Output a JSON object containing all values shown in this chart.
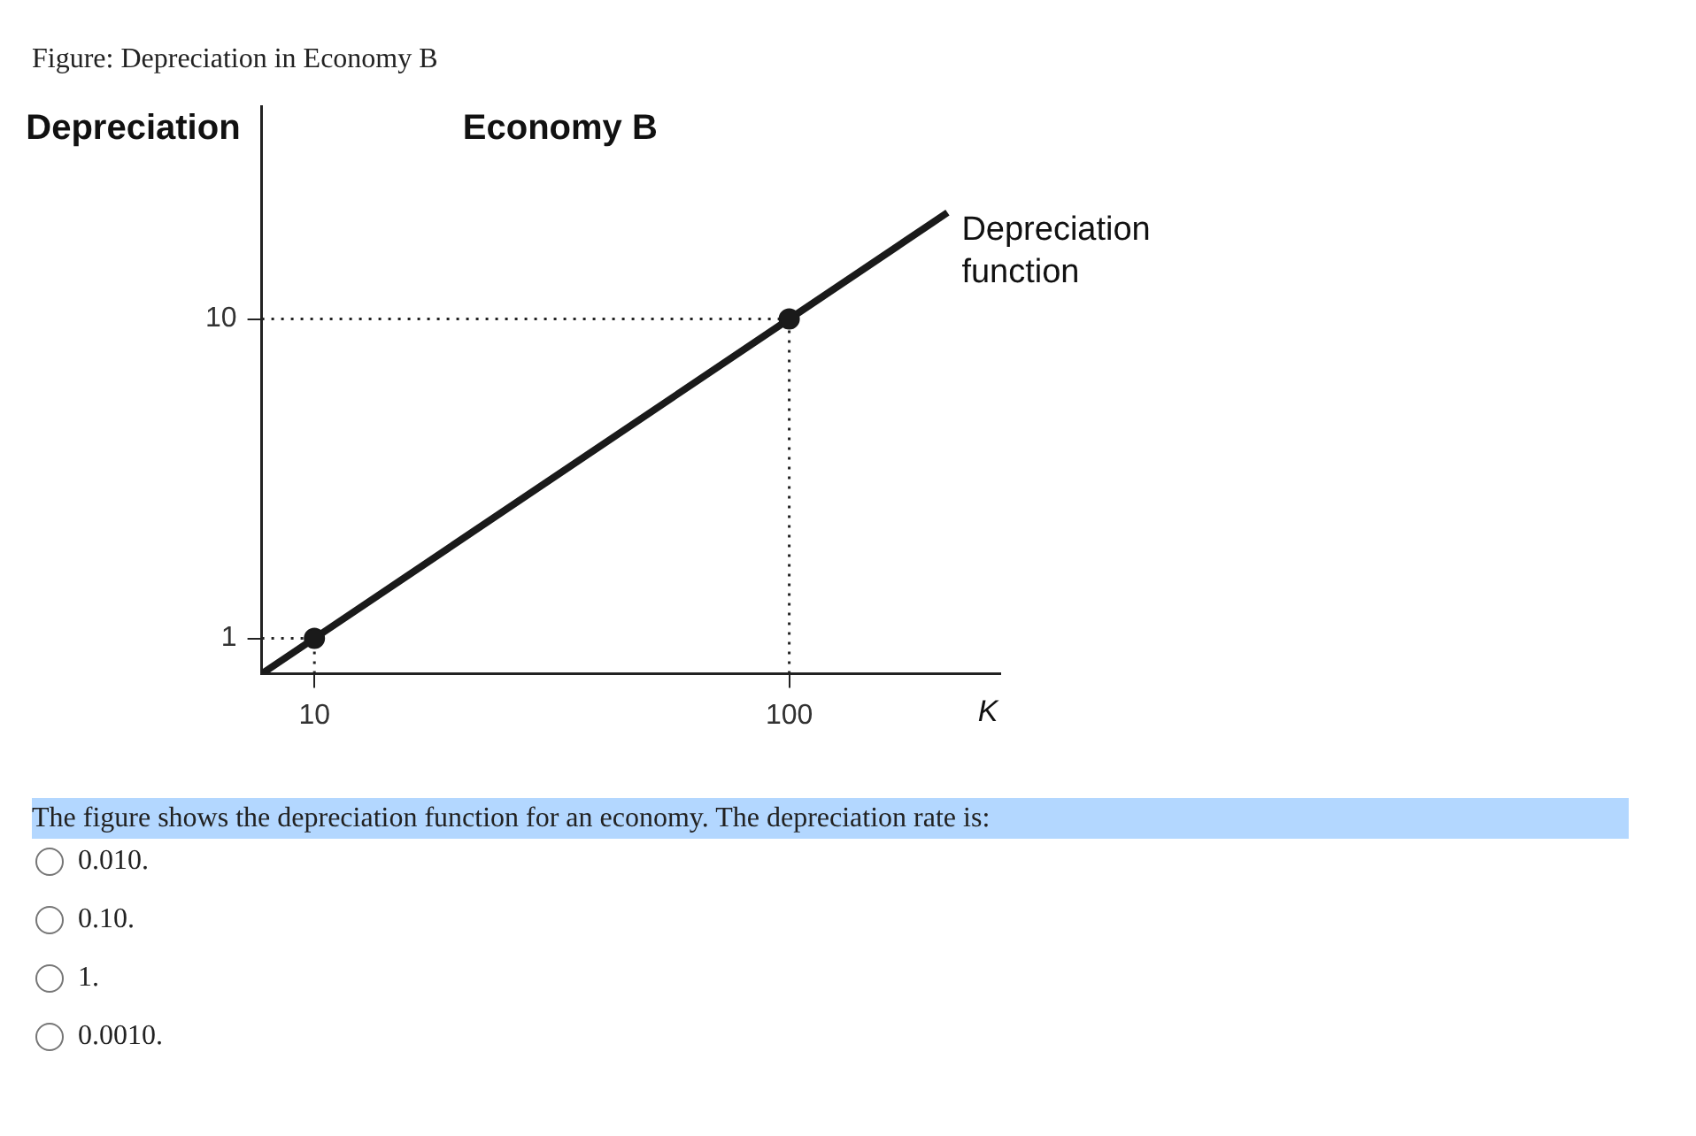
{
  "chart_data": {
    "type": "line",
    "title": "Economy B",
    "ylabel": "Depreciation",
    "xlabel": "K",
    "series": [
      {
        "type": "line",
        "color": "#222222",
        "x": [
          0,
          10
        ],
        "values": [
          1,
          1
        ],
        "marker": "none",
        "line_style": "dotted"
      },
      {
        "type": "line",
        "color": "#222222",
        "x": [
          10,
          10
        ],
        "values": [
          0,
          1
        ],
        "marker": "none",
        "line_style": "dotted"
      },
      {
        "type": "line",
        "color": "#222222",
        "x": [
          0,
          100
        ],
        "values": [
          10,
          10
        ],
        "marker": "none",
        "line_style": "dotted"
      },
      {
        "type": "line",
        "color": "#222222",
        "x": [
          100,
          100
        ],
        "values": [
          0,
          10
        ],
        "marker": "none",
        "line_style": "dotted"
      },
      {
        "name": "Depreciation function",
        "color": "#1a1a1a",
        "x": [
          0,
          10,
          100,
          130
        ],
        "values": [
          0,
          1,
          10,
          13
        ],
        "marker": "none"
      },
      {
        "type": "scatter",
        "color": "#1a1a1a",
        "x": [
          10,
          100
        ],
        "values": [
          1,
          10
        ],
        "marker": "circle"
      }
    ],
    "xlim": [
      0,
      140
    ],
    "xticks": [
      10,
      100
    ],
    "ylim": [
      0,
      16
    ],
    "yticks": [
      1,
      10
    ],
    "grid": false,
    "legend": false,
    "annotations": [
      "Figure: Depreciation in Economy B",
      "The figure shows the depreciation function for an economy. The depreciation rate is:",
      "0.010.",
      "0.10.",
      "1.",
      "0.0010."
    ]
  }
}
